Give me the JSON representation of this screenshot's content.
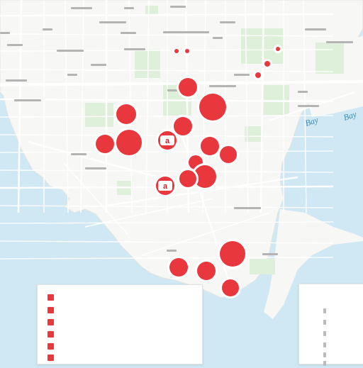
{
  "map": {
    "water_color": "#cfe8f4",
    "land_color": "#f7f7f5",
    "park_color": "#dff0da",
    "marker_color": "#e8383d",
    "water_labels": [
      "Bay",
      "Bay"
    ],
    "markers": [
      {
        "id": "m1",
        "label": ""
      },
      {
        "id": "m2",
        "label": ""
      },
      {
        "id": "m3",
        "label": ""
      },
      {
        "id": "m4",
        "label": ""
      },
      {
        "id": "m5",
        "label": ""
      },
      {
        "id": "m6",
        "label": ""
      },
      {
        "id": "m7",
        "label": "a"
      },
      {
        "id": "m8",
        "label": ""
      },
      {
        "id": "m9",
        "label": ""
      },
      {
        "id": "m10",
        "label": ""
      },
      {
        "id": "m11",
        "label": ""
      },
      {
        "id": "m12",
        "label": ""
      },
      {
        "id": "m13",
        "label": "a"
      },
      {
        "id": "m14",
        "label": ""
      },
      {
        "id": "m15",
        "label": ""
      },
      {
        "id": "m16",
        "label": ""
      },
      {
        "id": "m17",
        "label": ""
      },
      {
        "id": "m18",
        "label": ""
      },
      {
        "id": "m19",
        "label": ""
      },
      {
        "id": "m20",
        "label": ""
      },
      {
        "id": "m21",
        "label": ""
      },
      {
        "id": "m22",
        "label": ""
      }
    ]
  },
  "legend_left": {
    "rows": [
      {
        "label": "",
        "value": "",
        "count": ""
      },
      {
        "label": "",
        "value": "",
        "count": ""
      },
      {
        "label": "",
        "value": "",
        "count": ""
      },
      {
        "label": "",
        "value": "",
        "count": ""
      },
      {
        "label": "",
        "value": "",
        "count": ""
      },
      {
        "label": "",
        "value": "",
        "count": ""
      }
    ]
  },
  "legend_right": {
    "rows": [
      {
        "count": ""
      },
      {
        "count": ""
      },
      {
        "count": ""
      },
      {
        "count": ""
      },
      {
        "count": ""
      },
      {
        "count": ""
      }
    ]
  }
}
